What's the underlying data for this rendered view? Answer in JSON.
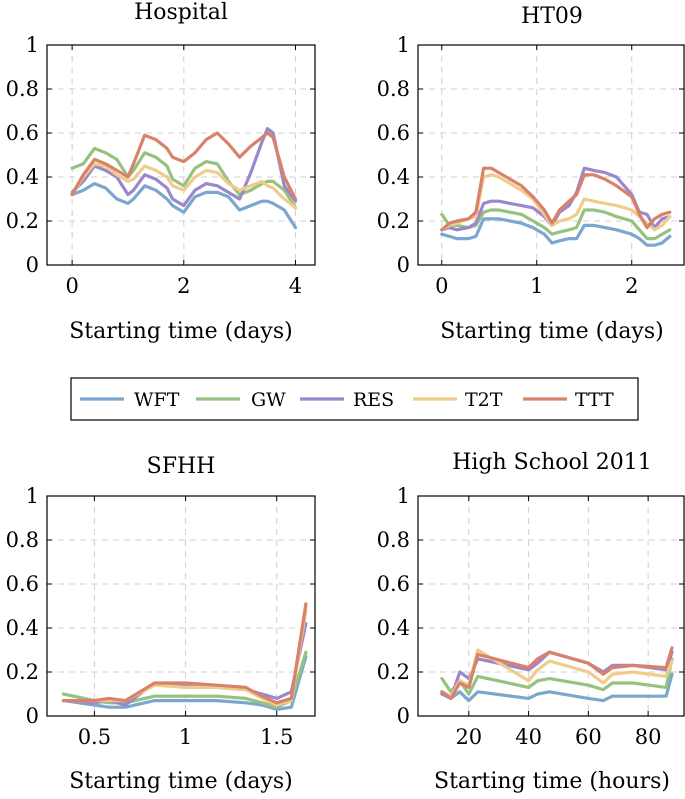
{
  "legend": {
    "entries": [
      {
        "name": "WFT",
        "color": "#7ba7cf"
      },
      {
        "name": "GW",
        "color": "#96c27f"
      },
      {
        "name": "RES",
        "color": "#9b87cc"
      },
      {
        "name": "T2T",
        "color": "#f0cc8a"
      },
      {
        "name": "TTT",
        "color": "#d9826b"
      }
    ]
  },
  "chart_data": [
    {
      "type": "line",
      "title": "Hospital",
      "xlabel": "Starting time (days)",
      "ylabel": "",
      "xlim": [
        -0.45,
        4.35
      ],
      "ylim": [
        0,
        1
      ],
      "xticks": [
        0,
        2,
        4
      ],
      "xtick_labels": [
        "0",
        "2",
        "4"
      ],
      "yticks": [
        0,
        0.2,
        0.4,
        0.6,
        0.8,
        1
      ],
      "ytick_labels": [
        "0",
        "0.2",
        "0.4",
        "0.6",
        "0.8",
        "1"
      ],
      "x": [
        0,
        0.2,
        0.4,
        0.6,
        0.8,
        1.0,
        1.1,
        1.3,
        1.5,
        1.7,
        1.8,
        2.0,
        2.2,
        2.4,
        2.6,
        2.8,
        3.0,
        3.2,
        3.4,
        3.5,
        3.6,
        3.8,
        4.0
      ],
      "series": [
        {
          "name": "WFT",
          "values": [
            0.32,
            0.34,
            0.37,
            0.35,
            0.3,
            0.28,
            0.3,
            0.36,
            0.34,
            0.3,
            0.27,
            0.24,
            0.31,
            0.33,
            0.33,
            0.31,
            0.25,
            0.27,
            0.29,
            0.29,
            0.28,
            0.25,
            0.17
          ]
        },
        {
          "name": "GW",
          "values": [
            0.44,
            0.46,
            0.53,
            0.51,
            0.48,
            0.4,
            0.43,
            0.51,
            0.49,
            0.45,
            0.39,
            0.36,
            0.44,
            0.47,
            0.46,
            0.38,
            0.32,
            0.34,
            0.37,
            0.38,
            0.38,
            0.34,
            0.26
          ]
        },
        {
          "name": "RES",
          "values": [
            0.33,
            0.38,
            0.45,
            0.43,
            0.4,
            0.32,
            0.34,
            0.41,
            0.39,
            0.35,
            0.3,
            0.27,
            0.34,
            0.37,
            0.36,
            0.33,
            0.3,
            0.42,
            0.56,
            0.62,
            0.6,
            0.36,
            0.29
          ]
        },
        {
          "name": "T2T",
          "values": [
            0.32,
            0.4,
            0.46,
            0.45,
            0.41,
            0.38,
            0.39,
            0.45,
            0.43,
            0.4,
            0.36,
            0.34,
            0.4,
            0.43,
            0.42,
            0.37,
            0.34,
            0.36,
            0.38,
            0.36,
            0.35,
            0.3,
            0.26
          ]
        },
        {
          "name": "TTT",
          "values": [
            0.32,
            0.41,
            0.48,
            0.46,
            0.43,
            0.4,
            0.46,
            0.59,
            0.57,
            0.53,
            0.49,
            0.47,
            0.51,
            0.57,
            0.6,
            0.55,
            0.49,
            0.54,
            0.58,
            0.6,
            0.58,
            0.4,
            0.3
          ]
        }
      ]
    },
    {
      "type": "line",
      "title": "HT09",
      "xlabel": "Starting time (days)",
      "ylabel": "",
      "xlim": [
        -0.25,
        2.55
      ],
      "ylim": [
        0,
        1
      ],
      "xticks": [
        0,
        1,
        2
      ],
      "xtick_labels": [
        "0",
        "1",
        "2"
      ],
      "yticks": [
        0,
        0.2,
        0.4,
        0.6,
        0.8,
        1
      ],
      "ytick_labels": [
        "0",
        "0.2",
        "0.4",
        "0.6",
        "0.8",
        "1"
      ],
      "x": [
        0,
        0.08,
        0.16,
        0.28,
        0.36,
        0.44,
        0.52,
        0.6,
        0.72,
        0.84,
        0.96,
        1.08,
        1.16,
        1.24,
        1.34,
        1.42,
        1.5,
        1.6,
        1.72,
        1.84,
        2.0,
        2.08,
        2.16,
        2.24,
        2.32,
        2.4
      ],
      "series": [
        {
          "name": "WFT",
          "values": [
            0.14,
            0.13,
            0.12,
            0.12,
            0.13,
            0.21,
            0.21,
            0.21,
            0.2,
            0.19,
            0.17,
            0.14,
            0.1,
            0.11,
            0.12,
            0.12,
            0.18,
            0.18,
            0.17,
            0.16,
            0.14,
            0.12,
            0.09,
            0.09,
            0.1,
            0.13
          ]
        },
        {
          "name": "GW",
          "values": [
            0.23,
            0.18,
            0.18,
            0.17,
            0.18,
            0.24,
            0.25,
            0.25,
            0.24,
            0.23,
            0.2,
            0.17,
            0.14,
            0.15,
            0.16,
            0.17,
            0.25,
            0.25,
            0.24,
            0.22,
            0.2,
            0.16,
            0.12,
            0.12,
            0.14,
            0.16
          ]
        },
        {
          "name": "RES",
          "values": [
            0.16,
            0.17,
            0.16,
            0.17,
            0.19,
            0.28,
            0.29,
            0.29,
            0.28,
            0.27,
            0.26,
            0.22,
            0.18,
            0.24,
            0.27,
            0.33,
            0.44,
            0.43,
            0.42,
            0.4,
            0.32,
            0.24,
            0.23,
            0.17,
            0.21,
            0.22
          ]
        },
        {
          "name": "T2T",
          "values": [
            0.16,
            0.18,
            0.19,
            0.21,
            0.22,
            0.4,
            0.41,
            0.4,
            0.37,
            0.34,
            0.3,
            0.23,
            0.18,
            0.2,
            0.21,
            0.23,
            0.3,
            0.29,
            0.28,
            0.27,
            0.25,
            0.22,
            0.19,
            0.16,
            0.18,
            0.22
          ]
        },
        {
          "name": "TTT",
          "values": [
            0.16,
            0.19,
            0.2,
            0.21,
            0.24,
            0.44,
            0.44,
            0.42,
            0.39,
            0.36,
            0.31,
            0.25,
            0.19,
            0.25,
            0.29,
            0.32,
            0.41,
            0.41,
            0.39,
            0.36,
            0.31,
            0.23,
            0.17,
            0.21,
            0.23,
            0.24
          ]
        }
      ]
    },
    {
      "type": "line",
      "title": "SFHH",
      "xlabel": "Starting time (days)",
      "ylabel": "",
      "xlim": [
        0.24,
        1.71
      ],
      "ylim": [
        0,
        1
      ],
      "xticks": [
        0.5,
        1,
        1.5
      ],
      "xtick_labels": [
        "0.5",
        "1",
        "1.5"
      ],
      "yticks": [
        0,
        0.2,
        0.4,
        0.6,
        0.8,
        1
      ],
      "ytick_labels": [
        "0",
        "0.2",
        "0.4",
        "0.6",
        "0.8",
        "1"
      ],
      "x": [
        0.33,
        0.5,
        0.58,
        0.67,
        0.83,
        1.0,
        1.17,
        1.33,
        1.42,
        1.5,
        1.58,
        1.66
      ],
      "series": [
        {
          "name": "WFT",
          "values": [
            0.07,
            0.05,
            0.04,
            0.04,
            0.07,
            0.07,
            0.07,
            0.06,
            0.05,
            0.03,
            0.04,
            0.27
          ]
        },
        {
          "name": "GW",
          "values": [
            0.1,
            0.07,
            0.06,
            0.06,
            0.09,
            0.09,
            0.09,
            0.08,
            0.06,
            0.04,
            0.07,
            0.29
          ]
        },
        {
          "name": "RES",
          "values": [
            0.07,
            0.06,
            0.07,
            0.05,
            0.15,
            0.14,
            0.13,
            0.12,
            0.1,
            0.08,
            0.11,
            0.42
          ]
        },
        {
          "name": "T2T",
          "values": [
            0.07,
            0.07,
            0.07,
            0.07,
            0.14,
            0.13,
            0.13,
            0.12,
            0.08,
            0.05,
            0.07,
            0.48
          ]
        },
        {
          "name": "TTT",
          "values": [
            0.07,
            0.07,
            0.08,
            0.07,
            0.15,
            0.15,
            0.14,
            0.13,
            0.09,
            0.06,
            0.08,
            0.51
          ]
        }
      ]
    },
    {
      "type": "line",
      "title": "High School 2011",
      "xlabel": "Starting time (hours)",
      "ylabel": "",
      "xlim": [
        3,
        92
      ],
      "ylim": [
        0,
        1
      ],
      "xticks": [
        20,
        40,
        60,
        80
      ],
      "xtick_labels": [
        "20",
        "40",
        "60",
        "80"
      ],
      "yticks": [
        0,
        0.2,
        0.4,
        0.6,
        0.8,
        1
      ],
      "ytick_labels": [
        "0",
        "0.2",
        "0.4",
        "0.6",
        "0.8",
        "1"
      ],
      "x": [
        11,
        14,
        17,
        20,
        23,
        40,
        43,
        47,
        60,
        65,
        68,
        75,
        86,
        88
      ],
      "series": [
        {
          "name": "WFT",
          "values": [
            0.1,
            0.08,
            0.11,
            0.07,
            0.11,
            0.08,
            0.1,
            0.11,
            0.08,
            0.07,
            0.09,
            0.09,
            0.09,
            0.19
          ]
        },
        {
          "name": "GW",
          "values": [
            0.17,
            0.11,
            0.16,
            0.1,
            0.18,
            0.13,
            0.16,
            0.17,
            0.14,
            0.12,
            0.15,
            0.15,
            0.13,
            0.26
          ]
        },
        {
          "name": "RES",
          "values": [
            0.1,
            0.08,
            0.2,
            0.17,
            0.26,
            0.21,
            0.24,
            0.29,
            0.24,
            0.2,
            0.23,
            0.23,
            0.21,
            0.29
          ]
        },
        {
          "name": "T2T",
          "values": [
            0.11,
            0.09,
            0.16,
            0.14,
            0.3,
            0.16,
            0.21,
            0.25,
            0.2,
            0.15,
            0.19,
            0.2,
            0.18,
            0.25
          ]
        },
        {
          "name": "TTT",
          "values": [
            0.11,
            0.08,
            0.15,
            0.13,
            0.28,
            0.22,
            0.26,
            0.29,
            0.24,
            0.19,
            0.22,
            0.23,
            0.22,
            0.31
          ]
        }
      ]
    }
  ]
}
